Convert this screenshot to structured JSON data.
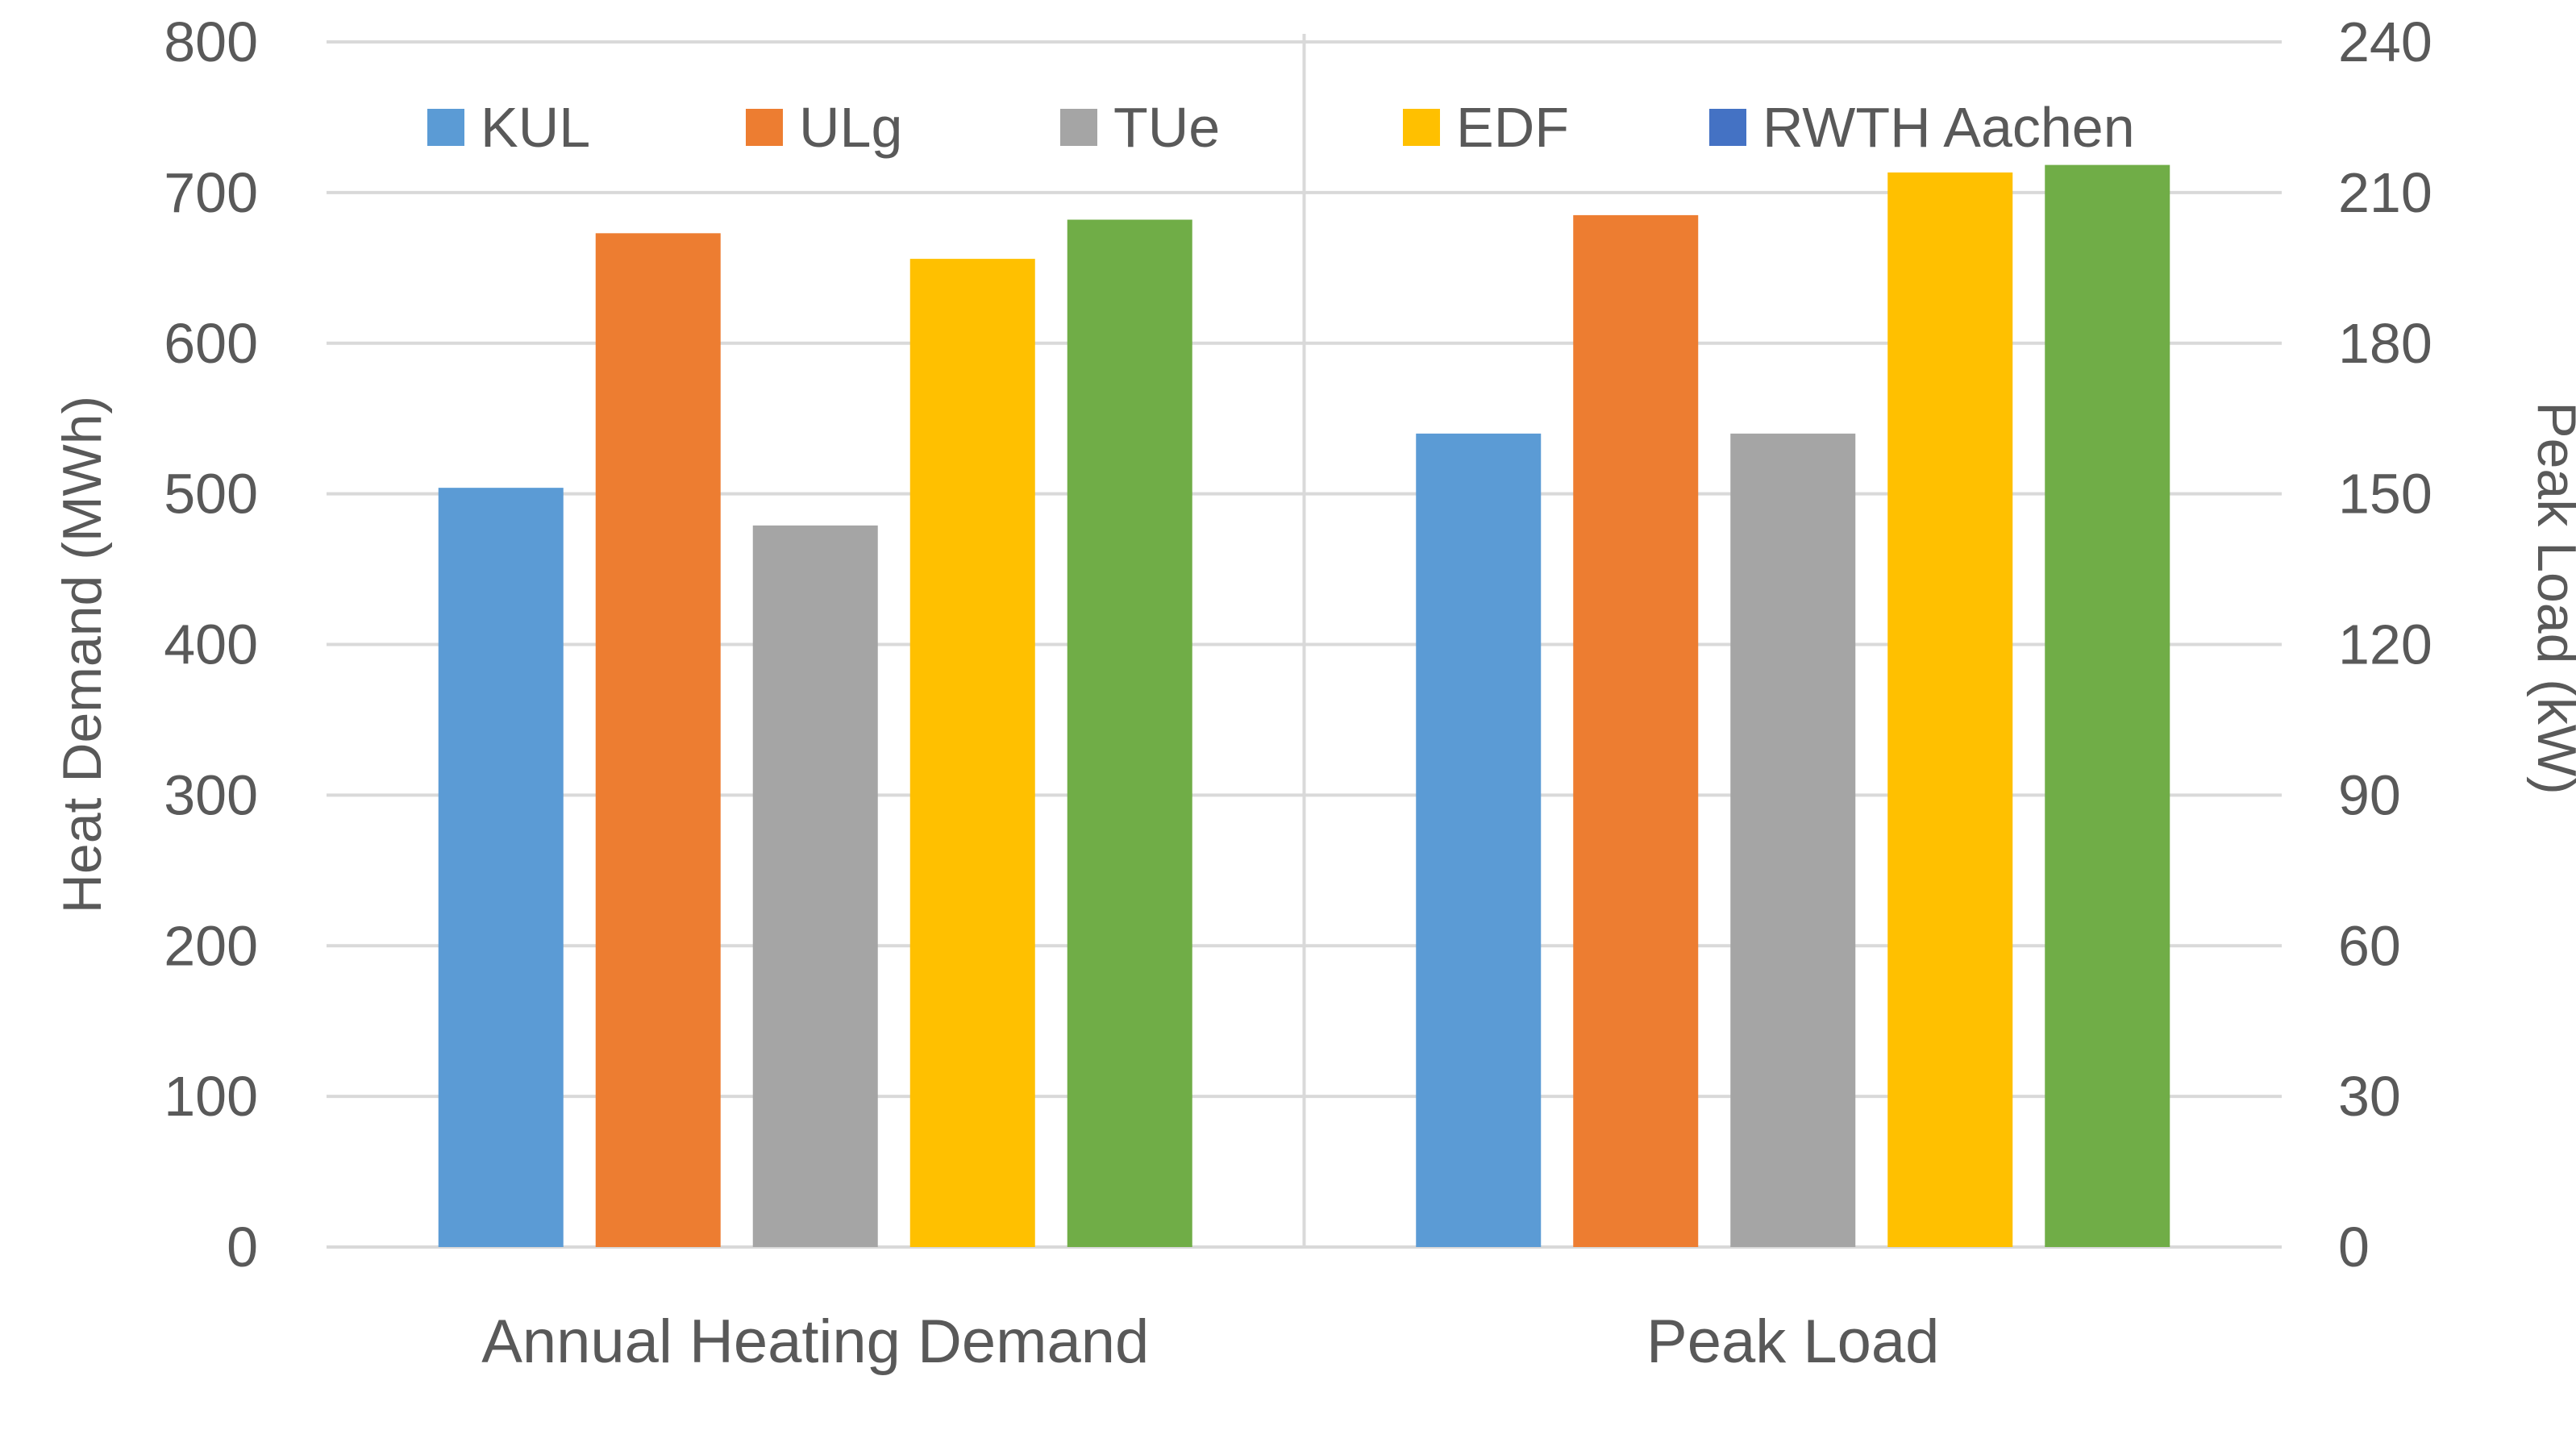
{
  "chart_data": {
    "type": "bar",
    "categories": [
      "Annual Heating Demand",
      "Peak Load"
    ],
    "series": [
      {
        "name": "KUL",
        "color": "#5B9BD5",
        "values": [
          504,
          162
        ]
      },
      {
        "name": "ULg",
        "color": "#ED7D31",
        "values": [
          673,
          205.5
        ]
      },
      {
        "name": "TUe",
        "color": "#A5A5A5",
        "values": [
          479,
          162
        ]
      },
      {
        "name": "EDF",
        "color": "#FFC000",
        "values": [
          656,
          214
        ]
      },
      {
        "name": "RWTH Aachen",
        "color": "#4472C4",
        "legend_color": "#4472C4",
        "bar_color": "#70AD47",
        "values": [
          682,
          215.5
        ]
      }
    ],
    "axis_note": "Annual Heating Demand values on left axis (MWh); Peak Load values on right axis (kW)",
    "ylabel": "Heat Demand (MWh)",
    "y2label": "Peak Load (kW)",
    "ylim": [
      0,
      800
    ],
    "y2lim": [
      0,
      240
    ],
    "yticks": [
      "0",
      "100",
      "200",
      "300",
      "400",
      "500",
      "600",
      "700",
      "800"
    ],
    "y2ticks": [
      "0",
      "30",
      "60",
      "90",
      "120",
      "150",
      "180",
      "210",
      "240"
    ],
    "grid": true,
    "legend_position": "top"
  }
}
